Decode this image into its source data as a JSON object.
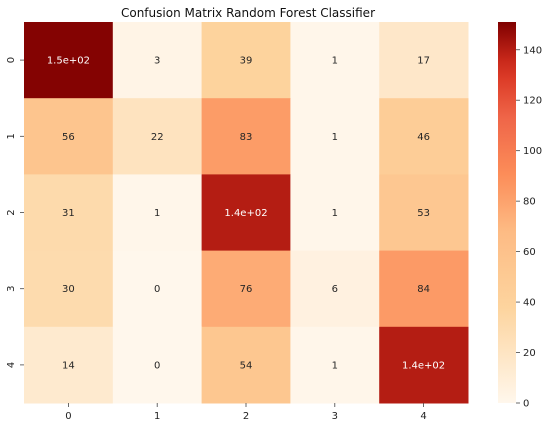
{
  "chart_data": {
    "type": "heatmap",
    "title": "Confusion Matrix Random Forest Classifier",
    "row_labels": [
      "0",
      "1",
      "2",
      "3",
      "4"
    ],
    "col_labels": [
      "0",
      "1",
      "2",
      "3",
      "4"
    ],
    "values": [
      [
        150,
        3,
        39,
        1,
        17
      ],
      [
        56,
        22,
        83,
        1,
        46
      ],
      [
        31,
        1,
        140,
        1,
        53
      ],
      [
        30,
        0,
        76,
        6,
        84
      ],
      [
        14,
        0,
        54,
        1,
        140
      ]
    ],
    "annotations": [
      [
        "1.5e+02",
        "3",
        "39",
        "1",
        "17"
      ],
      [
        "56",
        "22",
        "83",
        "1",
        "46"
      ],
      [
        "31",
        "1",
        "1.4e+02",
        "1",
        "53"
      ],
      [
        "30",
        "0",
        "76",
        "6",
        "84"
      ],
      [
        "14",
        "0",
        "54",
        "1",
        "1.4e+02"
      ]
    ],
    "colormap": "OrRd",
    "color_range": [
      0,
      151
    ],
    "colorbar_ticks": [
      0,
      20,
      40,
      60,
      80,
      100,
      120,
      140
    ],
    "grid": false
  }
}
